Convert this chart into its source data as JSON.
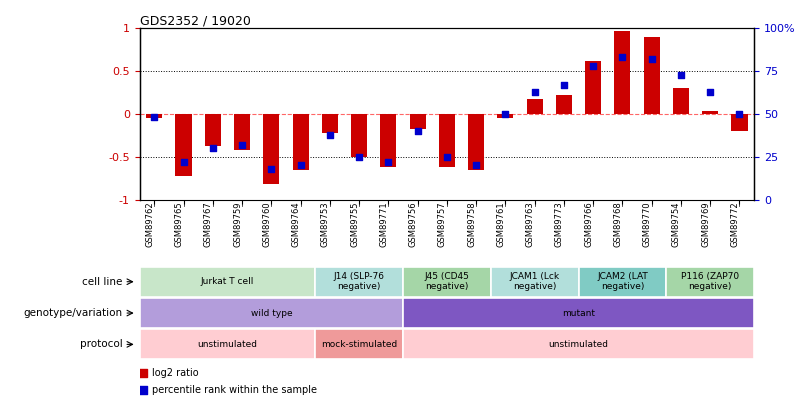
{
  "title": "GDS2352 / 19020",
  "samples": [
    "GSM89762",
    "GSM89765",
    "GSM89767",
    "GSM89759",
    "GSM89760",
    "GSM89764",
    "GSM89753",
    "GSM89755",
    "GSM89771",
    "GSM89756",
    "GSM89757",
    "GSM89758",
    "GSM89761",
    "GSM89763",
    "GSM89773",
    "GSM89766",
    "GSM89768",
    "GSM89770",
    "GSM89754",
    "GSM89769",
    "GSM89772"
  ],
  "log2_ratio": [
    -0.05,
    -0.72,
    -0.37,
    -0.42,
    -0.82,
    -0.65,
    -0.22,
    -0.5,
    -0.62,
    -0.18,
    -0.62,
    -0.65,
    -0.05,
    0.18,
    0.22,
    0.62,
    0.97,
    0.9,
    0.3,
    0.03,
    -0.2
  ],
  "percentile": [
    48,
    22,
    30,
    32,
    18,
    20,
    38,
    25,
    22,
    40,
    25,
    20,
    50,
    63,
    67,
    78,
    83,
    82,
    73,
    63,
    50
  ],
  "cell_line_groups": [
    {
      "label": "Jurkat T cell",
      "start": 0,
      "end": 6,
      "color": "#c8e6c9"
    },
    {
      "label": "J14 (SLP-76\nnegative)",
      "start": 6,
      "end": 9,
      "color": "#b2dfdb"
    },
    {
      "label": "J45 (CD45\nnegative)",
      "start": 9,
      "end": 12,
      "color": "#a5d6a7"
    },
    {
      "label": "JCAM1 (Lck\nnegative)",
      "start": 12,
      "end": 15,
      "color": "#b2dfdb"
    },
    {
      "label": "JCAM2 (LAT\nnegative)",
      "start": 15,
      "end": 18,
      "color": "#80cbc4"
    },
    {
      "label": "P116 (ZAP70\nnegative)",
      "start": 18,
      "end": 21,
      "color": "#a5d6a7"
    }
  ],
  "genotype_groups": [
    {
      "label": "wild type",
      "start": 0,
      "end": 9,
      "color": "#b39ddb"
    },
    {
      "label": "mutant",
      "start": 9,
      "end": 21,
      "color": "#7e57c2"
    }
  ],
  "protocol_groups": [
    {
      "label": "unstimulated",
      "start": 0,
      "end": 6,
      "color": "#ffcdd2"
    },
    {
      "label": "mock-stimulated",
      "start": 6,
      "end": 9,
      "color": "#ef9a9a"
    },
    {
      "label": "unstimulated",
      "start": 9,
      "end": 21,
      "color": "#ffcdd2"
    }
  ],
  "bar_color": "#cc0000",
  "dot_color": "#0000cc",
  "zero_line_color": "#ff6666",
  "left_axis_color": "#cc0000",
  "right_axis_color": "#0000cc",
  "row_labels": [
    "cell line",
    "genotype/variation",
    "protocol"
  ],
  "legend": [
    {
      "color": "#cc0000",
      "label": "log2 ratio"
    },
    {
      "color": "#0000cc",
      "label": "percentile rank within the sample"
    }
  ]
}
